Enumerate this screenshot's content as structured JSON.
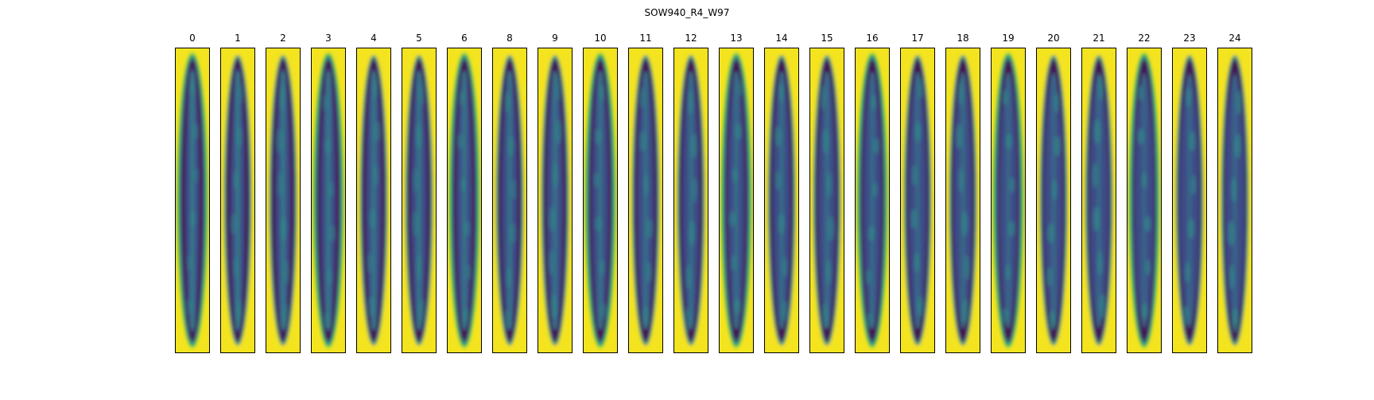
{
  "figure": {
    "title": "SOW940_R4_W97"
  },
  "panels": [
    {
      "label": "0"
    },
    {
      "label": "1"
    },
    {
      "label": "2"
    },
    {
      "label": "3"
    },
    {
      "label": "4"
    },
    {
      "label": "5"
    },
    {
      "label": "6"
    },
    {
      "label": "8"
    },
    {
      "label": "9"
    },
    {
      "label": "10"
    },
    {
      "label": "11"
    },
    {
      "label": "12"
    },
    {
      "label": "13"
    },
    {
      "label": "14"
    },
    {
      "label": "15"
    },
    {
      "label": "16"
    },
    {
      "label": "17"
    },
    {
      "label": "18"
    },
    {
      "label": "19"
    },
    {
      "label": "20"
    },
    {
      "label": "21"
    },
    {
      "label": "22"
    },
    {
      "label": "23"
    },
    {
      "label": "24"
    }
  ],
  "colors": {
    "background_yellow": "#f3e41f",
    "edge_green": "#5ec75f",
    "ring_teal": "#2a8a8c",
    "dark_purple": "#440a54",
    "mid_blue": "#3c4f8a",
    "core_teal": "#2f9a8a"
  }
}
